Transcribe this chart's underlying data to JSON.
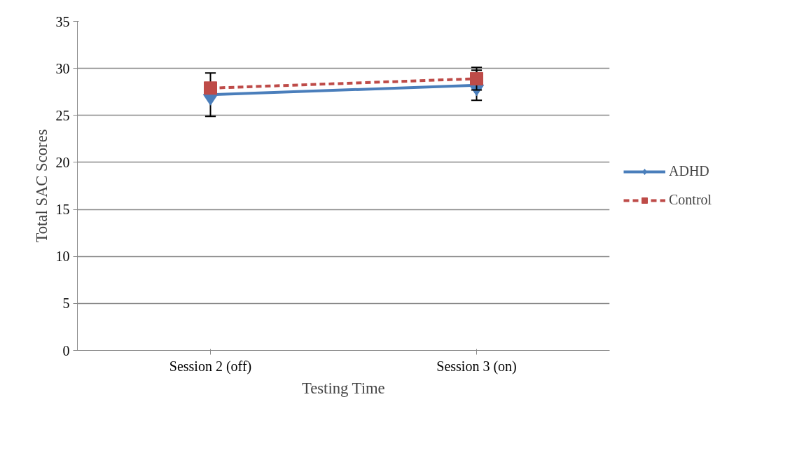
{
  "chart_data": {
    "type": "line",
    "xlabel": "Testing Time",
    "ylabel": "Total SAC Scores",
    "categories": [
      "Session 2 (off)",
      "Session 3 (on)"
    ],
    "series": [
      {
        "name": "ADHD",
        "color": "#4a7ebb",
        "values": [
          27.2,
          28.2
        ],
        "errors": [
          2.3,
          1.6
        ],
        "marker": "diamond",
        "line_style": "solid"
      },
      {
        "name": "Control",
        "color": "#be4b48",
        "values": [
          27.9,
          28.9
        ],
        "errors": [
          null,
          1.2
        ],
        "marker": "square",
        "line_style": "dashed"
      }
    ],
    "ylim": [
      0,
      35
    ],
    "yticks": [
      0,
      5,
      10,
      15,
      20,
      25,
      30,
      35
    ],
    "grid": "y",
    "legend": "right"
  }
}
